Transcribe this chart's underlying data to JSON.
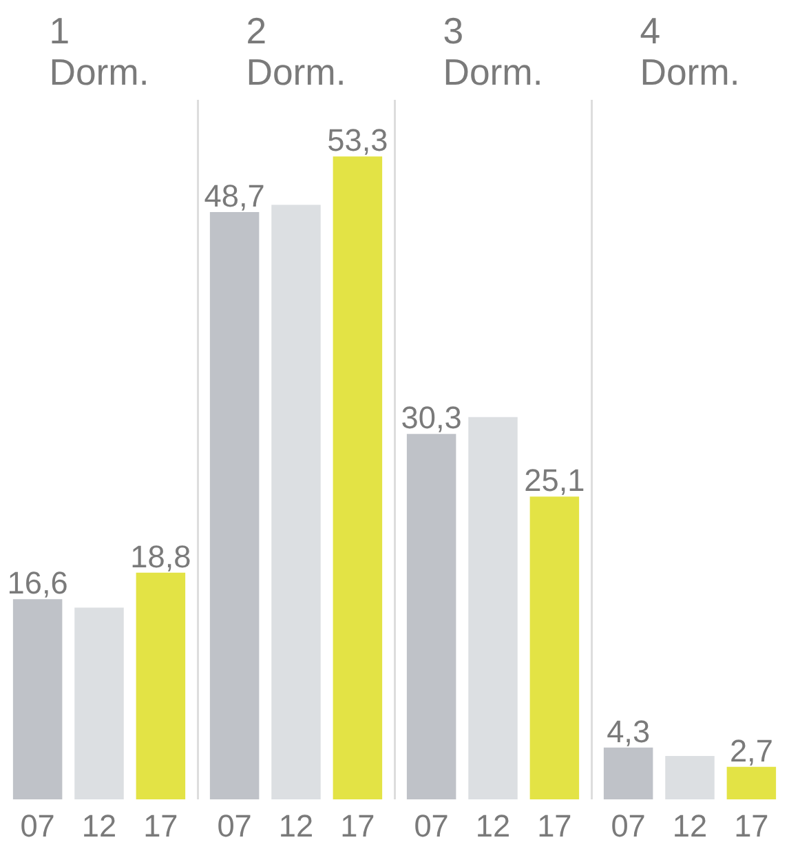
{
  "chart_data": [
    {
      "type": "bar",
      "title": "1 Dorm.",
      "categories": [
        "07",
        "12",
        "17"
      ],
      "values": [
        16.6,
        15.9,
        18.8
      ],
      "colors": [
        "#bfc2c8",
        "#dcdfe2",
        "#e3e345"
      ],
      "value_labels": [
        "16,6",
        null,
        "18,8"
      ],
      "ylim": [
        0,
        58
      ]
    },
    {
      "type": "bar",
      "title": "2 Dorm.",
      "categories": [
        "07",
        "12",
        "17"
      ],
      "values": [
        48.7,
        49.3,
        53.3
      ],
      "colors": [
        "#bfc2c8",
        "#dcdfe2",
        "#e3e345"
      ],
      "value_labels": [
        "48,7",
        null,
        "53,3"
      ],
      "ylim": [
        0,
        58
      ]
    },
    {
      "type": "bar",
      "title": "3 Dorm.",
      "categories": [
        "07",
        "12",
        "17"
      ],
      "values": [
        30.3,
        31.7,
        25.1
      ],
      "colors": [
        "#bfc2c8",
        "#dcdfe2",
        "#e3e345"
      ],
      "value_labels": [
        "30,3",
        null,
        "25,1"
      ],
      "ylim": [
        0,
        58
      ]
    },
    {
      "type": "bar",
      "title": "4 Dorm.",
      "categories": [
        "07",
        "12",
        "17"
      ],
      "values": [
        4.3,
        3.6,
        2.7
      ],
      "colors": [
        "#bfc2c8",
        "#dcdfe2",
        "#e3e345"
      ],
      "value_labels": [
        "4,3",
        null,
        "2,7"
      ],
      "ylim": [
        0,
        58
      ]
    }
  ]
}
